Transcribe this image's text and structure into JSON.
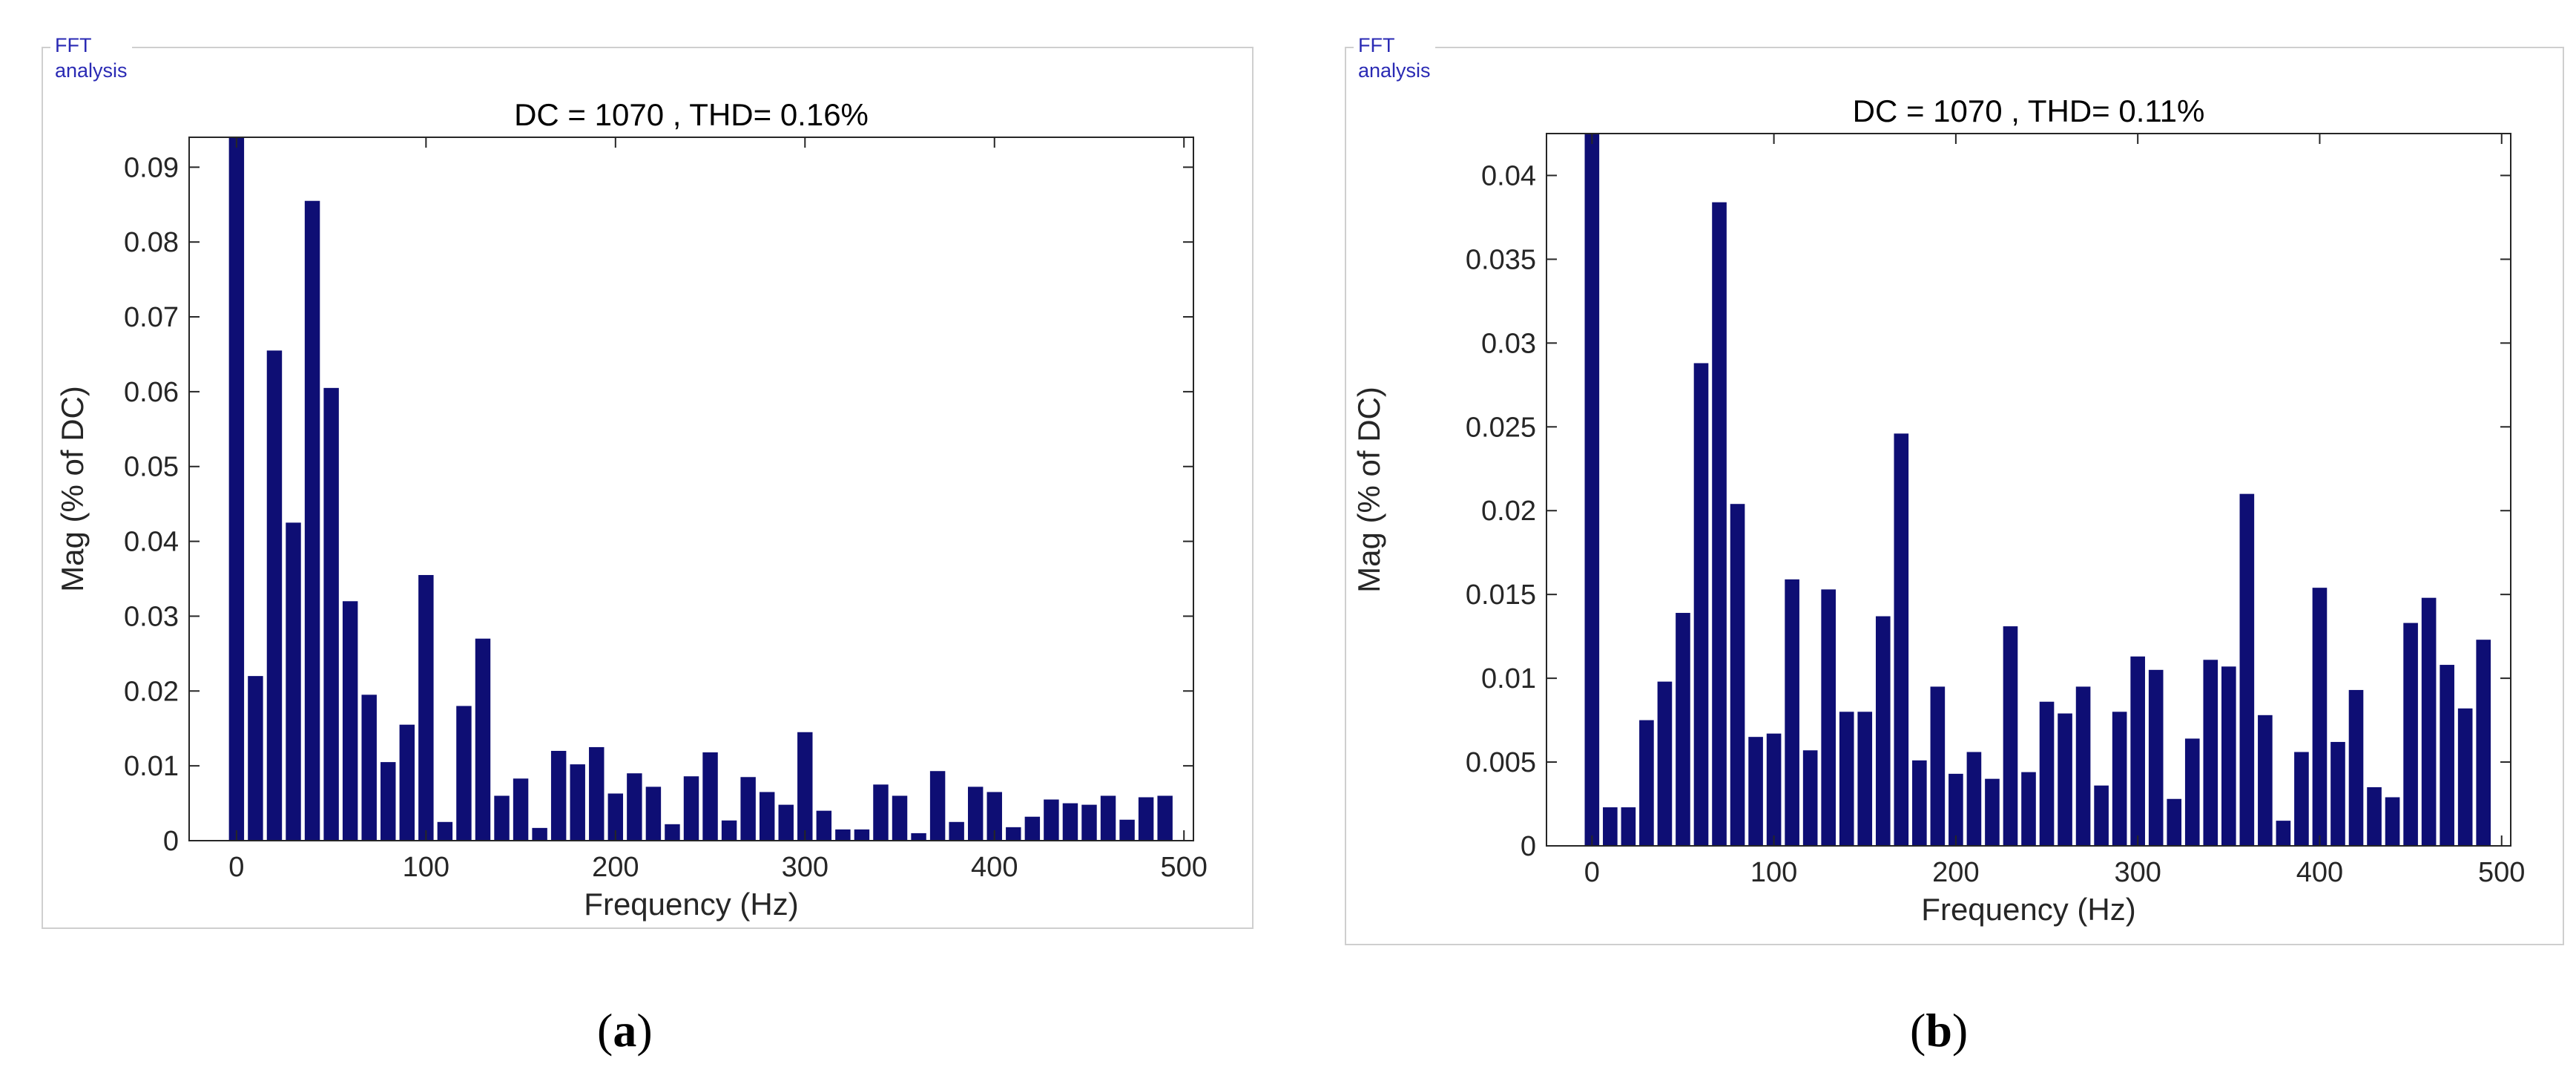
{
  "bar_color": "#0e0e74",
  "panels": [
    {
      "frame_title": "FFT analysis",
      "caption_letter": "a",
      "chart_data": {
        "type": "bar",
        "title": "DC = 1070 , THD= 0.16%",
        "xlabel": "Frequency (Hz)",
        "ylabel": "Mag (% of DC)",
        "xlim": [
          -25,
          505
        ],
        "ylim": [
          0,
          0.094
        ],
        "xticks": [
          0,
          100,
          200,
          300,
          400,
          500
        ],
        "yticks": [
          0,
          0.01,
          0.02,
          0.03,
          0.04,
          0.05,
          0.06,
          0.07,
          0.08,
          0.09
        ],
        "x": [
          0,
          10,
          20,
          30,
          40,
          50,
          60,
          70,
          80,
          90,
          100,
          110,
          120,
          130,
          140,
          150,
          160,
          170,
          180,
          190,
          200,
          210,
          220,
          230,
          240,
          250,
          260,
          270,
          280,
          290,
          300,
          310,
          320,
          330,
          340,
          350,
          360,
          370,
          380,
          390,
          400,
          410,
          420,
          430,
          440,
          450,
          460,
          470,
          480,
          490
        ],
        "values": [
          0.094,
          0.022,
          0.0655,
          0.0425,
          0.0855,
          0.0605,
          0.032,
          0.0195,
          0.0105,
          0.0155,
          0.0355,
          0.0025,
          0.018,
          0.027,
          0.006,
          0.0083,
          0.0017,
          0.012,
          0.0102,
          0.0125,
          0.0063,
          0.009,
          0.0072,
          0.0022,
          0.0086,
          0.0118,
          0.0027,
          0.0085,
          0.0065,
          0.0048,
          0.0145,
          0.004,
          0.0015,
          0.0015,
          0.0075,
          0.006,
          0.001,
          0.0093,
          0.0025,
          0.0072,
          0.0065,
          0.0018,
          0.0032,
          0.0055,
          0.005,
          0.0048,
          0.006,
          0.0028,
          0.0058,
          0.006
        ]
      }
    },
    {
      "frame_title": "FFT analysis",
      "caption_letter": "b",
      "chart_data": {
        "type": "bar",
        "title": "DC = 1070 , THD= 0.11%",
        "xlabel": "Frequency (Hz)",
        "ylabel": "Mag (% of DC)",
        "xlim": [
          -25,
          505
        ],
        "ylim": [
          0,
          0.0425
        ],
        "xticks": [
          0,
          100,
          200,
          300,
          400,
          500
        ],
        "yticks": [
          0,
          0.005,
          0.01,
          0.015,
          0.02,
          0.025,
          0.03,
          0.035,
          0.04
        ],
        "x": [
          0,
          10,
          20,
          30,
          40,
          50,
          60,
          70,
          80,
          90,
          100,
          110,
          120,
          130,
          140,
          150,
          160,
          170,
          180,
          190,
          200,
          210,
          220,
          230,
          240,
          250,
          260,
          270,
          280,
          290,
          300,
          310,
          320,
          330,
          340,
          350,
          360,
          370,
          380,
          390,
          400,
          410,
          420,
          430,
          440,
          450,
          460,
          470,
          480,
          490
        ],
        "values": [
          0.0425,
          0.0023,
          0.0023,
          0.0075,
          0.0098,
          0.0139,
          0.0288,
          0.0384,
          0.0204,
          0.0065,
          0.0067,
          0.0159,
          0.0057,
          0.0153,
          0.008,
          0.008,
          0.0137,
          0.0246,
          0.0051,
          0.0095,
          0.0043,
          0.0056,
          0.004,
          0.0131,
          0.0044,
          0.0086,
          0.0079,
          0.0095,
          0.0036,
          0.008,
          0.0113,
          0.0105,
          0.0028,
          0.0064,
          0.0111,
          0.0107,
          0.021,
          0.0078,
          0.0015,
          0.0056,
          0.0154,
          0.0062,
          0.0093,
          0.0035,
          0.0029,
          0.0133,
          0.0148,
          0.0108,
          0.0082,
          0.0123
        ]
      }
    }
  ]
}
